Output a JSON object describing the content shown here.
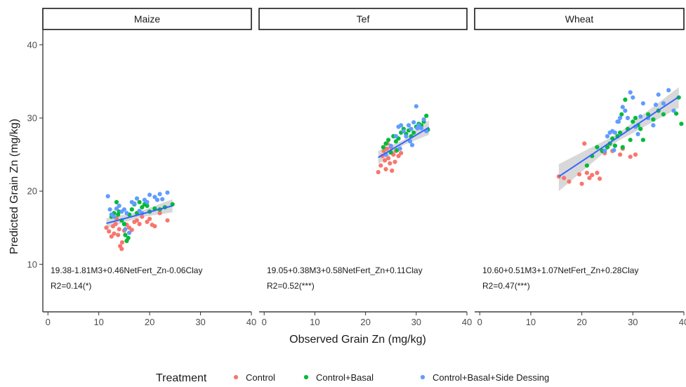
{
  "chart_data": {
    "type": "scatter",
    "xlabel": "Observed Grain Zn (mg/kg)",
    "ylabel": "Predicted Grain Zn (mg/kg)",
    "xlim": [
      -1,
      40
    ],
    "ylim": [
      3.5,
      42
    ],
    "x_ticks": [
      0,
      10,
      20,
      30,
      40
    ],
    "y_ticks": [
      10,
      20,
      30,
      40
    ],
    "grid": false,
    "legend": {
      "title": "Treatment",
      "position": "bottom",
      "entries": [
        {
          "name": "Control",
          "color": "#F8766D"
        },
        {
          "name": "Control+Basal",
          "color": "#00BA38"
        },
        {
          "name": "Control+Basal+Side Dessing",
          "color": "#619CFF"
        }
      ]
    },
    "fit_line_color": "#3366FF",
    "ribbon_color": "#BEBEBE",
    "facets": [
      {
        "title": "Maize",
        "equation": "19.38-1.81M3+0.46NetFert_Zn-0.06Clay",
        "r2": "R2=0.14(*)",
        "fit": {
          "x": [
            11.5,
            24.5
          ],
          "y": [
            15.6,
            18.0
          ]
        },
        "ribbon": {
          "x": [
            11.5,
            18,
            24.5
          ],
          "lower": [
            14.9,
            16.4,
            17.1
          ],
          "upper": [
            16.3,
            17.2,
            18.9
          ]
        },
        "series": [
          {
            "name": "Control",
            "points": [
              [
                11.5,
                15.0
              ],
              [
                12.0,
                14.5
              ],
              [
                12.5,
                13.8
              ],
              [
                12.8,
                15.2
              ],
              [
                13.0,
                14.2
              ],
              [
                13.3,
                15.5
              ],
              [
                13.8,
                14.0
              ],
              [
                14.0,
                14.8
              ],
              [
                14.2,
                12.5
              ],
              [
                14.5,
                12.1
              ],
              [
                14.6,
                13.0
              ],
              [
                15.0,
                14.6
              ],
              [
                15.5,
                15.4
              ],
              [
                16.0,
                15.0
              ],
              [
                16.5,
                14.7
              ],
              [
                17.0,
                15.8
              ],
              [
                17.5,
                16.0
              ],
              [
                18.0,
                15.5
              ],
              [
                18.5,
                16.5
              ],
              [
                19.5,
                15.8
              ],
              [
                20.0,
                16.2
              ],
              [
                20.5,
                15.4
              ],
              [
                21.0,
                15.2
              ],
              [
                22.0,
                17.0
              ],
              [
                23.5,
                16.0
              ],
              [
                13.5,
                16.3
              ]
            ]
          },
          {
            "name": "Control+Basal",
            "points": [
              [
                12.5,
                16.5
              ],
              [
                13.0,
                17.0
              ],
              [
                13.5,
                18.5
              ],
              [
                13.8,
                16.8
              ],
              [
                14.0,
                17.2
              ],
              [
                14.5,
                16.0
              ],
              [
                15.0,
                15.5
              ],
              [
                15.2,
                14.0
              ],
              [
                15.5,
                13.2
              ],
              [
                15.8,
                13.6
              ],
              [
                16.0,
                16.8
              ],
              [
                16.5,
                17.5
              ],
              [
                17.0,
                18.2
              ],
              [
                17.5,
                17.0
              ],
              [
                18.0,
                18.5
              ],
              [
                18.5,
                17.8
              ],
              [
                19.0,
                18.2
              ],
              [
                20.0,
                17.2
              ],
              [
                21.0,
                17.6
              ],
              [
                22.0,
                17.5
              ],
              [
                23.0,
                17.8
              ],
              [
                24.5,
                18.2
              ],
              [
                19.5,
                18.0
              ]
            ]
          },
          {
            "name": "Control+Basal+Side Dessing",
            "points": [
              [
                11.8,
                19.3
              ],
              [
                12.2,
                17.5
              ],
              [
                12.5,
                16.8
              ],
              [
                13.0,
                16.5
              ],
              [
                13.5,
                17.6
              ],
              [
                14.0,
                18.0
              ],
              [
                14.5,
                17.2
              ],
              [
                15.0,
                17.5
              ],
              [
                15.5,
                17.0
              ],
              [
                16.5,
                18.5
              ],
              [
                17.0,
                18.3
              ],
              [
                17.5,
                19.0
              ],
              [
                18.0,
                17.3
              ],
              [
                18.5,
                17.0
              ],
              [
                19.0,
                18.8
              ],
              [
                19.5,
                18.5
              ],
              [
                20.0,
                19.5
              ],
              [
                21.0,
                19.2
              ],
              [
                21.5,
                18.8
              ],
              [
                22.0,
                19.6
              ],
              [
                22.5,
                18.9
              ],
              [
                23.5,
                19.8
              ],
              [
                16.0,
                14.3
              ],
              [
                15.2,
                14.8
              ]
            ]
          }
        ]
      },
      {
        "title": "Tef",
        "equation": "19.05+0.38M3+0.58NetFert_Zn+0.11Clay",
        "r2": "R2=0.52(***)",
        "fit": {
          "x": [
            22.5,
            32.5
          ],
          "y": [
            24.6,
            28.7
          ]
        },
        "ribbon": {
          "x": [
            22.5,
            27.5,
            32.5
          ],
          "lower": [
            23.7,
            26.3,
            27.7
          ],
          "upper": [
            25.5,
            27.0,
            29.7
          ]
        },
        "series": [
          {
            "name": "Control",
            "points": [
              [
                22.5,
                22.6
              ],
              [
                23.0,
                23.5
              ],
              [
                23.3,
                24.8
              ],
              [
                23.6,
                25.5
              ],
              [
                23.8,
                24.2
              ],
              [
                24.0,
                23.0
              ],
              [
                24.2,
                25.8
              ],
              [
                24.5,
                24.5
              ],
              [
                24.8,
                23.8
              ],
              [
                25.0,
                26.0
              ],
              [
                25.2,
                22.8
              ],
              [
                25.5,
                25.0
              ],
              [
                25.8,
                24.0
              ],
              [
                26.0,
                25.5
              ],
              [
                26.5,
                24.8
              ],
              [
                27.0,
                25.2
              ],
              [
                24.3,
                26.5
              ]
            ]
          },
          {
            "name": "Control+Basal",
            "points": [
              [
                23.5,
                26.0
              ],
              [
                24.0,
                26.5
              ],
              [
                24.5,
                27.0
              ],
              [
                25.0,
                25.3
              ],
              [
                25.5,
                27.5
              ],
              [
                26.0,
                26.8
              ],
              [
                26.5,
                27.2
              ],
              [
                27.0,
                28.0
              ],
              [
                27.5,
                28.5
              ],
              [
                28.0,
                27.8
              ],
              [
                28.5,
                28.3
              ],
              [
                29.0,
                27.5
              ],
              [
                29.5,
                28.0
              ],
              [
                30.0,
                28.8
              ],
              [
                30.5,
                29.2
              ],
              [
                31.0,
                29.0
              ],
              [
                31.5,
                29.5
              ],
              [
                32.0,
                30.3
              ],
              [
                32.3,
                28.4
              ],
              [
                26.2,
                25.6
              ]
            ]
          },
          {
            "name": "Control+Basal+Side Dessing",
            "points": [
              [
                24.0,
                25.0
              ],
              [
                25.0,
                26.2
              ],
              [
                26.0,
                27.5
              ],
              [
                26.5,
                28.8
              ],
              [
                27.0,
                29.0
              ],
              [
                27.5,
                28.2
              ],
              [
                28.0,
                27.5
              ],
              [
                28.5,
                29.0
              ],
              [
                29.0,
                28.5
              ],
              [
                29.5,
                29.4
              ],
              [
                30.0,
                31.6
              ],
              [
                30.5,
                29.0
              ],
              [
                31.0,
                28.6
              ],
              [
                31.5,
                29.8
              ],
              [
                32.0,
                28.2
              ],
              [
                26.8,
                25.8
              ],
              [
                28.8,
                26.8
              ],
              [
                30.2,
                28.6
              ],
              [
                29.2,
                26.3
              ]
            ]
          }
        ]
      },
      {
        "title": "Wheat",
        "equation": "10.60+0.51M3+1.07NetFert_Zn+0.28Clay",
        "r2": "R2=0.47(***)",
        "fit": {
          "x": [
            15.5,
            39.0
          ],
          "y": [
            22.0,
            32.9
          ]
        },
        "ribbon": {
          "x": [
            15.5,
            27,
            39.0
          ],
          "lower": [
            20.0,
            26.8,
            31.4
          ],
          "upper": [
            23.7,
            27.8,
            34.2
          ]
        },
        "series": [
          {
            "name": "Control",
            "points": [
              [
                15.5,
                22.0
              ],
              [
                16.5,
                21.8
              ],
              [
                17.5,
                21.3
              ],
              [
                19.5,
                22.3
              ],
              [
                20.0,
                21.0
              ],
              [
                20.5,
                26.5
              ],
              [
                21.0,
                22.5
              ],
              [
                21.5,
                21.8
              ],
              [
                22.0,
                22.2
              ],
              [
                23.0,
                22.5
              ],
              [
                23.5,
                21.7
              ],
              [
                24.5,
                25.2
              ],
              [
                26.0,
                25.5
              ],
              [
                27.5,
                25.0
              ],
              [
                28.0,
                25.8
              ],
              [
                29.5,
                24.7
              ],
              [
                30.5,
                25.0
              ],
              [
                29.0,
                28.5
              ]
            ]
          },
          {
            "name": "Control+Basal",
            "points": [
              [
                21.0,
                23.5
              ],
              [
                22.0,
                24.8
              ],
              [
                23.0,
                26.0
              ],
              [
                24.0,
                25.5
              ],
              [
                25.0,
                26.0
              ],
              [
                25.5,
                26.5
              ],
              [
                26.0,
                27.2
              ],
              [
                26.5,
                26.2
              ],
              [
                27.0,
                27.5
              ],
              [
                27.5,
                28.0
              ],
              [
                28.0,
                26.0
              ],
              [
                28.5,
                32.5
              ],
              [
                29.0,
                28.5
              ],
              [
                29.5,
                27.0
              ],
              [
                30.0,
                29.5
              ],
              [
                30.5,
                30.0
              ],
              [
                31.0,
                29.0
              ],
              [
                31.5,
                28.5
              ],
              [
                32.0,
                27.0
              ],
              [
                33.0,
                30.5
              ],
              [
                34.0,
                29.8
              ],
              [
                35.0,
                31.0
              ],
              [
                36.0,
                30.5
              ],
              [
                38.5,
                30.6
              ],
              [
                39.0,
                32.8
              ],
              [
                39.5,
                29.2
              ],
              [
                27.8,
                30.5
              ]
            ]
          },
          {
            "name": "Control+Basal+Side Dessing",
            "points": [
              [
                24.5,
                25.5
              ],
              [
                25.0,
                27.5
              ],
              [
                25.5,
                28.0
              ],
              [
                26.0,
                28.2
              ],
              [
                26.5,
                28.0
              ],
              [
                27.0,
                29.5
              ],
              [
                27.5,
                30.0
              ],
              [
                28.0,
                31.5
              ],
              [
                28.5,
                31.0
              ],
              [
                29.0,
                30.0
              ],
              [
                29.5,
                33.5
              ],
              [
                30.0,
                32.8
              ],
              [
                30.5,
                28.8
              ],
              [
                31.0,
                27.8
              ],
              [
                31.5,
                30.2
              ],
              [
                32.0,
                32.0
              ],
              [
                33.0,
                30.0
              ],
              [
                34.0,
                29.0
              ],
              [
                34.5,
                31.8
              ],
              [
                35.0,
                33.2
              ],
              [
                36.0,
                32.0
              ],
              [
                37.0,
                33.8
              ],
              [
                38.0,
                31.0
              ],
              [
                27.2,
                29.5
              ],
              [
                26.3,
                25.6
              ]
            ]
          }
        ]
      }
    ]
  }
}
